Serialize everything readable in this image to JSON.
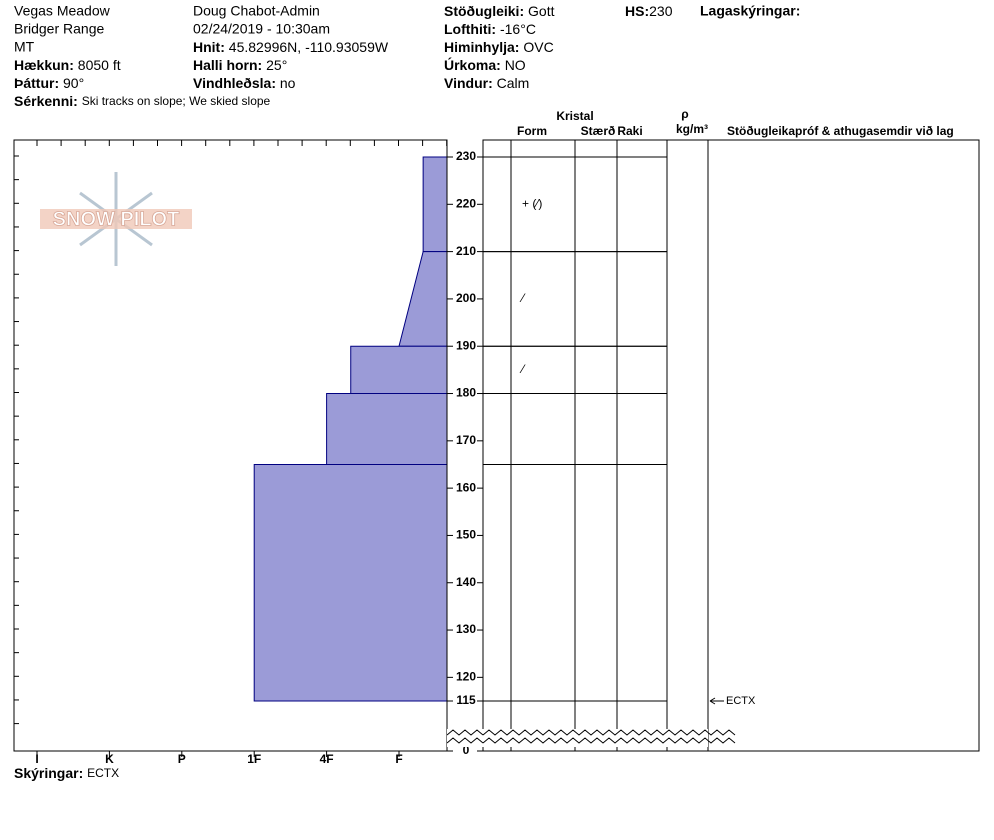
{
  "header": {
    "location": [
      "Vegas Meadow",
      "Bridger Range",
      "MT"
    ],
    "elevation": {
      "label": "Hækkun:",
      "value": "8050 ft"
    },
    "aspect": {
      "label": "Þáttur:",
      "value": "90°"
    },
    "features": {
      "label": "Sérkenni:",
      "value": "Ski tracks on slope; We skied slope"
    },
    "observer": "Doug Chabot-Admin",
    "datetime": "02/24/2019 - 10:30am",
    "coords": {
      "label": "Hnit:",
      "value": "45.82996N, -110.93059W"
    },
    "slope": {
      "label": "Halli horn:",
      "value": "25°"
    },
    "wind_loading": {
      "label": "Vindhleðsla:",
      "value": "no"
    },
    "stability": {
      "label": "Stöðugleiki:",
      "value": "Gott"
    },
    "air_temp": {
      "label": "Lofthiti:",
      "value": "-16°C"
    },
    "sky": {
      "label": "Himinhylja:",
      "value": "OVC"
    },
    "precip": {
      "label": "Úrkoma:",
      "value": "NO"
    },
    "wind": {
      "label": "Vindur:",
      "value": "Calm"
    },
    "hs": {
      "label": "HS:",
      "value": "230"
    },
    "layer_notes": "Lagaskýringar:"
  },
  "logo": "SNOW PILOT",
  "hardness_labels": [
    "I",
    "K",
    "P",
    "1F",
    "4F",
    "F"
  ],
  "depth_range": [
    115,
    230
  ],
  "depth_ticks": [
    230,
    220,
    210,
    200,
    190,
    180,
    170,
    160,
    150,
    140,
    130,
    120,
    115,
    0
  ],
  "table_headers": {
    "crystal": "Kristal",
    "form": "Form",
    "size": "Stærð",
    "moisture": "Raki",
    "rho": "ρ",
    "density_unit": "kg/m³",
    "comments": "Stöðugleikapróf & athugasemdir við lag"
  },
  "layers": [
    {
      "top": 230,
      "bottom": 210,
      "hardness_top": "F-",
      "hardness_bottom": "F-",
      "form": "+ (⁄)"
    },
    {
      "top": 210,
      "bottom": 190,
      "hardness_top": "F-",
      "hardness_bottom": "F",
      "form": "⁄"
    },
    {
      "top": 190,
      "bottom": 180,
      "hardness_top": "4F-",
      "hardness_bottom": "4F-",
      "form": "⁄"
    },
    {
      "top": 180,
      "bottom": 165,
      "hardness_top": "4F",
      "hardness_bottom": "4F"
    },
    {
      "top": 165,
      "bottom": 115,
      "hardness_top": "1F",
      "hardness_bottom": "1F"
    }
  ],
  "tests": [
    {
      "depth": 115,
      "result": "ECTX"
    }
  ],
  "footer": {
    "label": "Skýringar:",
    "value": "ECTX"
  }
}
